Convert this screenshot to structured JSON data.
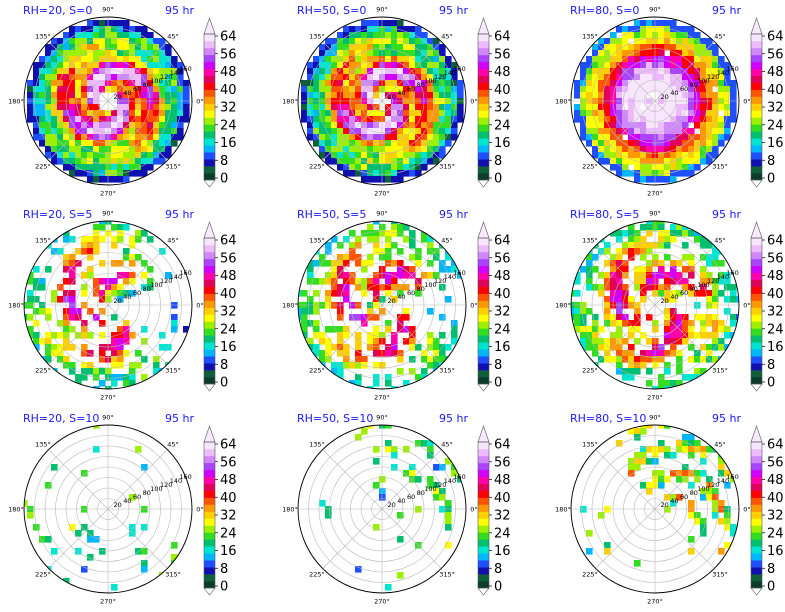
{
  "chart_data": {
    "type": "heatmap",
    "layout": {
      "rows": 3,
      "cols": 3
    },
    "projection": "polar",
    "angle_ticks": [
      "0°",
      "45°",
      "90°",
      "135°",
      "180°",
      "225°",
      "270°",
      "315°"
    ],
    "radial_ticks": [
      "20",
      "40",
      "60",
      "80",
      "100",
      "120",
      "140",
      "160"
    ],
    "radial_max": 160,
    "colorbar": {
      "ticks": [
        "0",
        "8",
        "16",
        "24",
        "32",
        "40",
        "48",
        "56",
        "64"
      ],
      "min": 0,
      "max": 64,
      "extend": "both",
      "colors": [
        "#0b3b2b",
        "#0e5f3a",
        "#1010b0",
        "#1f4fff",
        "#00b7ff",
        "#00e5d0",
        "#00c070",
        "#33dd22",
        "#9cf000",
        "#ffff00",
        "#ffd000",
        "#ff9900",
        "#ff5500",
        "#ff0000",
        "#e0005a",
        "#ff00aa",
        "#d000ff",
        "#aa44ff",
        "#d088ff",
        "#eebbff",
        "#f8e6ff"
      ]
    },
    "panels": [
      {
        "title": "RH=20, S=0",
        "time": "95 hr",
        "pattern": "spiral",
        "coverage": 0.95,
        "intensity": 0.55,
        "eye": 0.14,
        "sector": [
          0,
          360
        ]
      },
      {
        "title": "RH=50, S=0",
        "time": "95 hr",
        "pattern": "spiral",
        "coverage": 0.98,
        "intensity": 0.5,
        "eye": 0.09,
        "sector": [
          0,
          360
        ]
      },
      {
        "title": "RH=80, S=0",
        "time": "95 hr",
        "pattern": "ring",
        "coverage": 0.92,
        "intensity": 0.75,
        "eye": 0.07,
        "sector": [
          0,
          360
        ]
      },
      {
        "title": "RH=20, S=5",
        "time": "95 hr",
        "pattern": "sheared",
        "coverage": 0.6,
        "intensity": 0.65,
        "eye": 0.05,
        "sector": [
          60,
          300
        ]
      },
      {
        "title": "RH=50, S=5",
        "time": "95 hr",
        "pattern": "sheared",
        "coverage": 0.7,
        "intensity": 0.6,
        "eye": 0.05,
        "sector": [
          40,
          320
        ]
      },
      {
        "title": "RH=80, S=5",
        "time": "95 hr",
        "pattern": "sheared",
        "coverage": 0.8,
        "intensity": 0.7,
        "eye": 0.12,
        "sector": [
          20,
          340
        ]
      },
      {
        "title": "RH=20, S=10",
        "time": "95 hr",
        "pattern": "sparse",
        "coverage": 0.1,
        "intensity": 0.45,
        "eye": 0.0,
        "sector": [
          200,
          330
        ]
      },
      {
        "title": "RH=50, S=10",
        "time": "95 hr",
        "pattern": "sparse",
        "coverage": 0.18,
        "intensity": 0.5,
        "eye": 0.0,
        "sector": [
          0,
          90
        ]
      },
      {
        "title": "RH=80, S=10",
        "time": "95 hr",
        "pattern": "sparse",
        "coverage": 0.35,
        "intensity": 0.7,
        "eye": 0.0,
        "sector": [
          0,
          100
        ]
      }
    ]
  }
}
